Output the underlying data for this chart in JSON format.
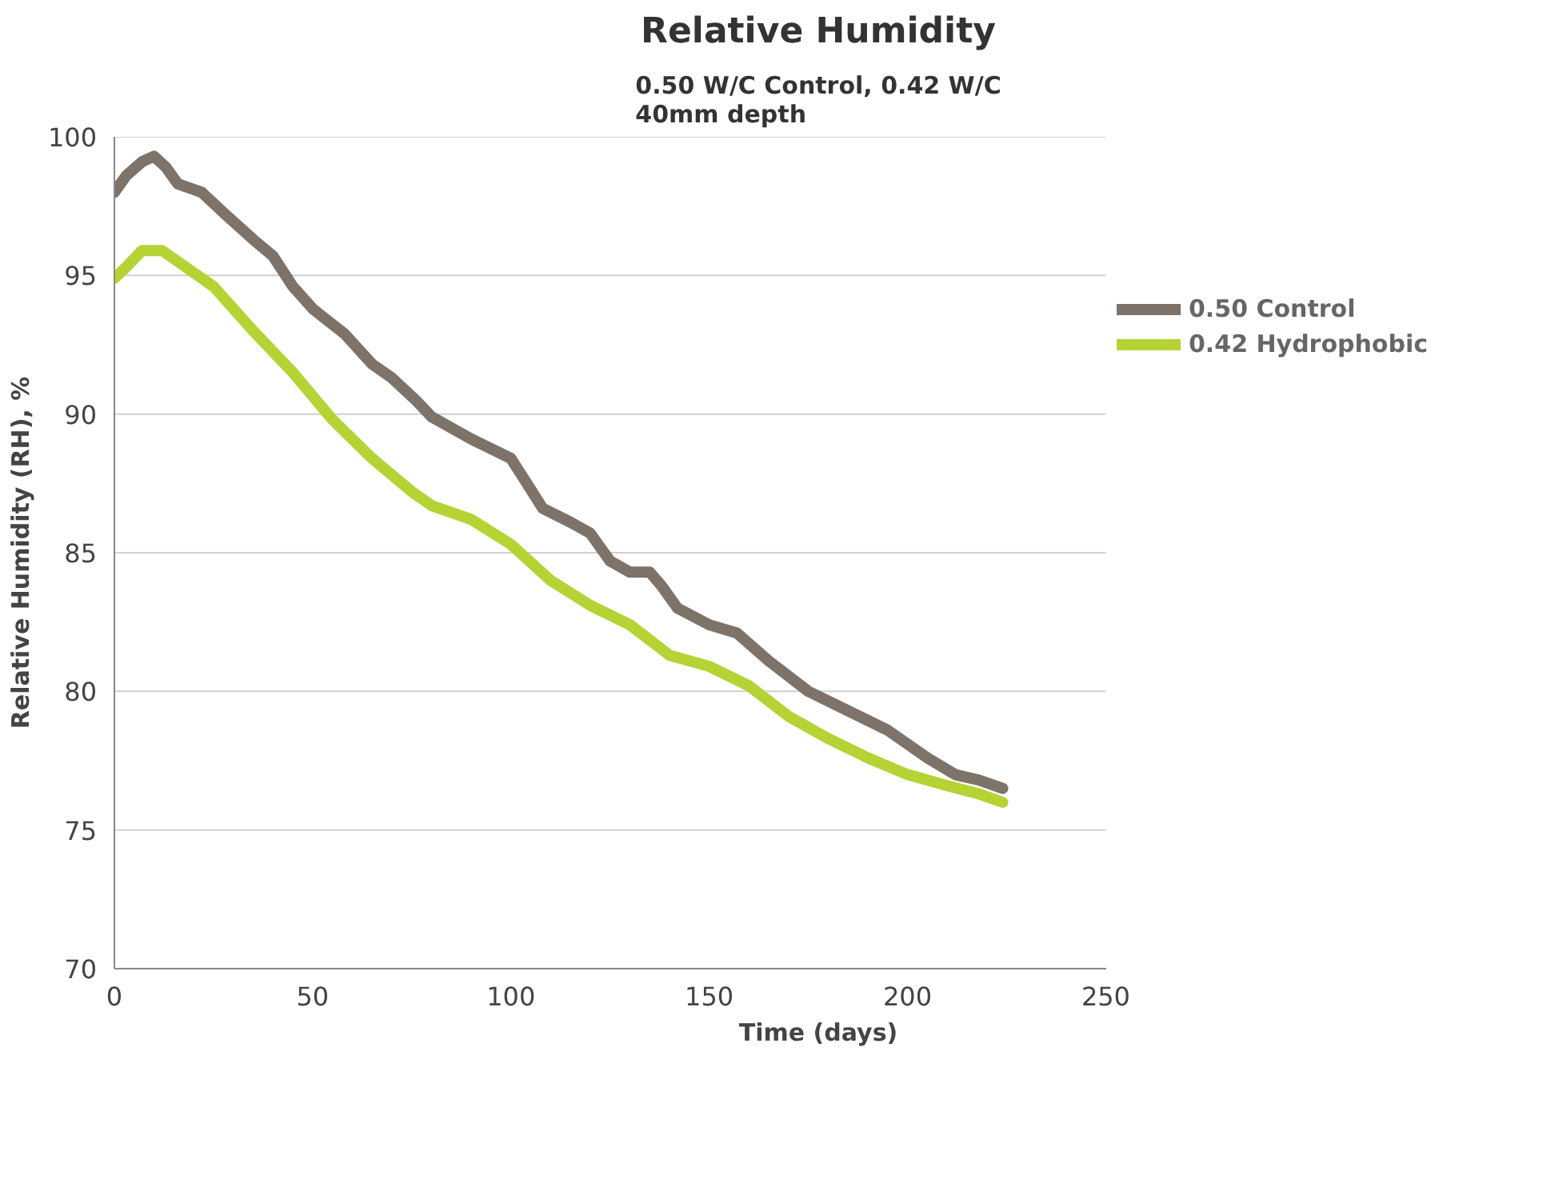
{
  "chart_data": {
    "type": "line",
    "title": "Relative Humidity",
    "subtitle": "0.50 W/C Control, 0.42 W/C\n40mm depth",
    "xlabel": "Time (days)",
    "ylabel": "Relative Humidity (RH), %",
    "xlim": [
      0,
      250
    ],
    "xticks": [
      0,
      50,
      100,
      150,
      200,
      250
    ],
    "ylim": [
      70,
      100
    ],
    "yticks": [
      70,
      75,
      80,
      85,
      90,
      95,
      100
    ],
    "grid": "y",
    "legend": "right",
    "line_style": "solid",
    "marker": "none",
    "series": [
      {
        "name": "0.50 Control",
        "color": "#7d7369",
        "x": [
          0,
          3,
          7,
          10,
          13,
          16,
          22,
          28,
          35,
          40,
          45,
          50,
          58,
          65,
          70,
          76,
          80,
          90,
          100,
          104,
          108,
          115,
          120,
          125,
          130,
          135,
          138,
          142,
          150,
          157,
          165,
          175,
          185,
          195,
          205,
          212,
          218,
          224
        ],
        "values": [
          98.0,
          98.6,
          99.1,
          99.3,
          98.9,
          98.3,
          98.0,
          97.2,
          96.3,
          95.7,
          94.6,
          93.8,
          92.9,
          91.8,
          91.3,
          90.5,
          89.9,
          89.1,
          88.4,
          87.5,
          86.6,
          86.1,
          85.7,
          84.7,
          84.3,
          84.3,
          83.8,
          83.0,
          82.4,
          82.1,
          81.1,
          80.0,
          79.3,
          78.6,
          77.6,
          77.0,
          76.8,
          76.5
        ]
      },
      {
        "name": "0.42 Hydrophobic",
        "color": "#b5d334",
        "x": [
          0,
          3,
          7,
          12,
          20,
          25,
          35,
          45,
          55,
          65,
          75,
          80,
          90,
          100,
          110,
          120,
          130,
          140,
          150,
          160,
          170,
          180,
          190,
          200,
          210,
          218,
          224
        ],
        "values": [
          94.9,
          95.3,
          95.9,
          95.9,
          95.1,
          94.6,
          93.0,
          91.5,
          89.8,
          88.4,
          87.2,
          86.7,
          86.2,
          85.3,
          84.0,
          83.1,
          82.4,
          81.3,
          80.9,
          80.2,
          79.1,
          78.3,
          77.6,
          77.0,
          76.6,
          76.3,
          76.0
        ]
      }
    ]
  }
}
